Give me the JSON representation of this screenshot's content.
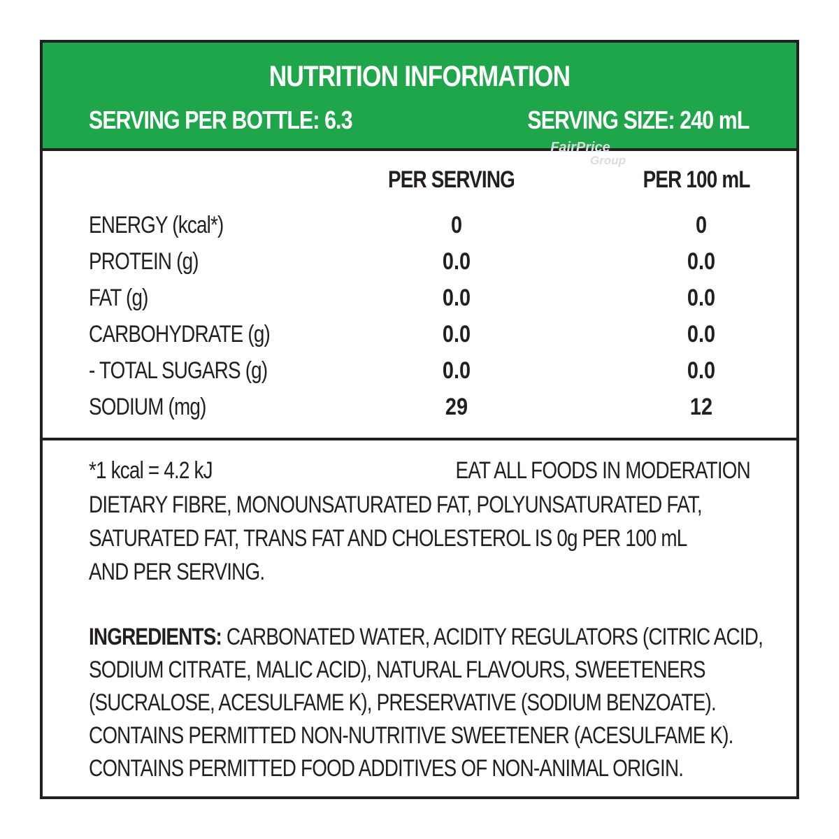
{
  "header": {
    "title": "NUTRITION INFORMATION",
    "serving_per_bottle": "SERVING PER BOTTLE: 6.3",
    "serving_size": "SERVING SIZE: 240 mL",
    "bg_color": "#1fa64a"
  },
  "watermark": {
    "line1": "FairPrice",
    "line2": "Group"
  },
  "table": {
    "col_per_serving": "PER SERVING",
    "col_per_100ml": "PER 100 mL",
    "rows": [
      {
        "name": "ENERGY (kcal*)",
        "per_serving": "0",
        "per_100ml": "0"
      },
      {
        "name": "PROTEIN (g)",
        "per_serving": "0.0",
        "per_100ml": "0.0"
      },
      {
        "name": "FAT (g)",
        "per_serving": "0.0",
        "per_100ml": "0.0"
      },
      {
        "name": "CARBOHYDRATE (g)",
        "per_serving": "0.0",
        "per_100ml": "0.0"
      },
      {
        "name": "- TOTAL SUGARS (g)",
        "per_serving": "0.0",
        "per_100ml": "0.0"
      },
      {
        "name": "SODIUM (mg)",
        "per_serving": "29",
        "per_100ml": "12"
      }
    ]
  },
  "footer": {
    "kcal_note": "*1 kcal = 4.2 kJ",
    "moderation": "EAT ALL FOODS IN MODERATION",
    "fibre_lines": [
      "DIETARY FIBRE, MONOUNSATURATED FAT, POLYUNSATURATED FAT,",
      "SATURATED FAT, TRANS FAT AND CHOLESTEROL IS 0g PER 100 mL",
      "AND PER SERVING."
    ],
    "ingredients_label": "INGREDIENTS:",
    "ingredients_lines": [
      " CARBONATED WATER, ACIDITY REGULATORS (CITRIC ACID,",
      "SODIUM CITRATE, MALIC ACID), NATURAL FLAVOURS, SWEETENERS",
      "(SUCRALOSE, ACESULFAME K), PRESERVATIVE (SODIUM BENZOATE).",
      "CONTAINS PERMITTED NON-NUTRITIVE SWEETENER (ACESULFAME K).",
      "CONTAINS PERMITTED FOOD ADDITIVES OF NON-ANIMAL ORIGIN."
    ]
  }
}
